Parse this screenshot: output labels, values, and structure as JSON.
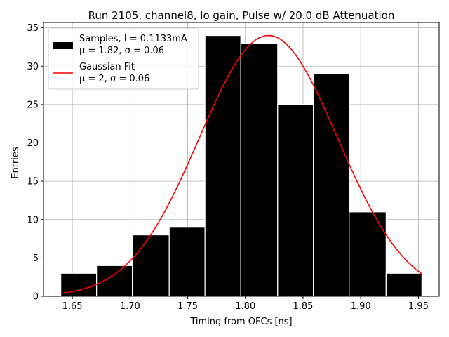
{
  "chart_data": {
    "type": "bar",
    "title": "Run 2105, channel8, lo gain, Pulse w/ 20.0 dB Attenuation",
    "xlabel": "Timing from OFCs [ns]",
    "ylabel": "Entries",
    "xlim": [
      1.625,
      1.968
    ],
    "ylim": [
      0,
      35.7
    ],
    "grid": true,
    "bins": [
      {
        "left": 1.64,
        "right": 1.671,
        "count": 3
      },
      {
        "left": 1.671,
        "right": 1.702,
        "count": 4
      },
      {
        "left": 1.702,
        "right": 1.734,
        "count": 8
      },
      {
        "left": 1.734,
        "right": 1.765,
        "count": 9
      },
      {
        "left": 1.765,
        "right": 1.796,
        "count": 34
      },
      {
        "left": 1.796,
        "right": 1.828,
        "count": 33
      },
      {
        "left": 1.828,
        "right": 1.859,
        "count": 25
      },
      {
        "left": 1.859,
        "right": 1.89,
        "count": 29
      },
      {
        "left": 1.89,
        "right": 1.922,
        "count": 11
      },
      {
        "left": 1.922,
        "right": 1.953,
        "count": 3
      }
    ],
    "fit": {
      "name": "Gaussian Fit",
      "amplitude": 34,
      "mu": 1.82,
      "sigma": 0.06,
      "x_range": [
        1.64,
        1.953
      ],
      "color": "#ff0000"
    },
    "x_ticks": [
      1.65,
      1.7,
      1.75,
      1.8,
      1.85,
      1.9,
      1.95
    ],
    "x_tick_labels": [
      "1.65",
      "1.70",
      "1.75",
      "1.80",
      "1.85",
      "1.90",
      "1.95"
    ],
    "y_ticks": [
      0,
      5,
      10,
      15,
      20,
      25,
      30,
      35
    ],
    "y_tick_labels": [
      "0",
      "5",
      "10",
      "15",
      "20",
      "25",
      "30",
      "35"
    ],
    "legend": {
      "location": "top-left",
      "entries": [
        {
          "kind": "patch",
          "color": "#000000",
          "lines": [
            "Samples, I = 0.1133mA",
            "μ = 1.82, σ = 0.06"
          ]
        },
        {
          "kind": "line",
          "color": "#ff0000",
          "lines": [
            "Gaussian Fit",
            "μ = 2, σ = 0.06"
          ]
        }
      ]
    }
  }
}
